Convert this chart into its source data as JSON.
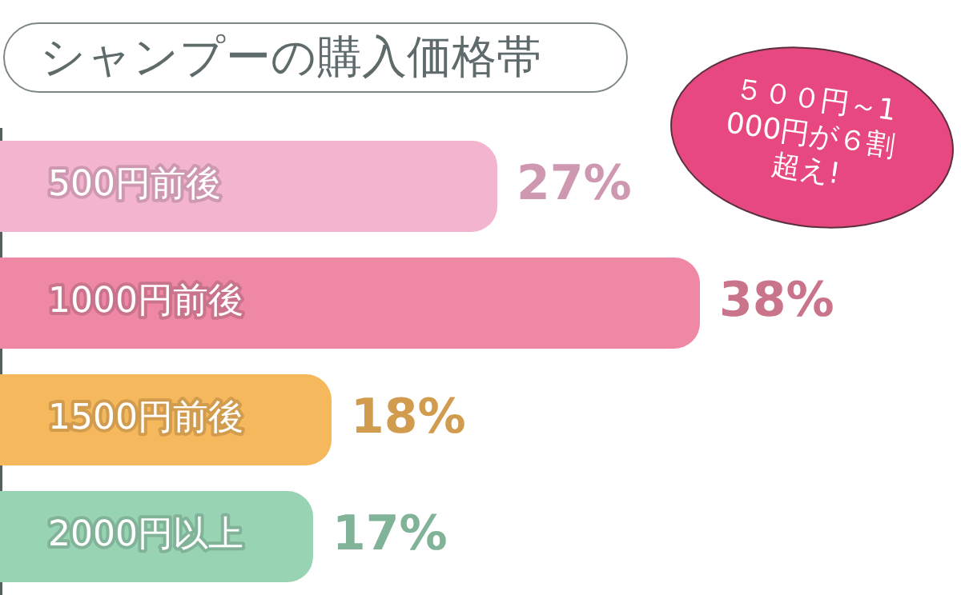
{
  "chart_data": {
    "type": "bar",
    "orientation": "horizontal",
    "title": "シャンプーの購入価格帯",
    "categories": [
      "500円前後",
      "1000円前後",
      "1500円前後",
      "2000円以上"
    ],
    "values": [
      27,
      38,
      18,
      17
    ],
    "value_labels": [
      "27%",
      "38%",
      "18%",
      "17%"
    ],
    "colors": [
      "#f2b4cf",
      "#ee88a4",
      "#f6b85c",
      "#98d3b3"
    ],
    "annotations": [
      "５００円～1000円が６割超え!"
    ]
  }
}
